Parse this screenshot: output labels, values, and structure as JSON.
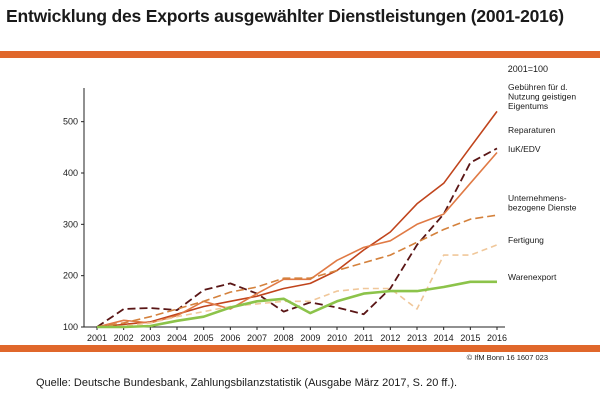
{
  "title": "Entwicklung des Exports ausgewählter Dienstleistungen (2001-2016)",
  "index_note": "2001=100",
  "copyright": "© IfM Bonn 16 1607 023",
  "source": "Quelle: Deutsche Bundesbank, Zahlungsbilanzstatistik (Ausgabe März 2017, S. 20 ff.).",
  "colors": {
    "accent_bar": "#e0672b"
  },
  "chart_data": {
    "type": "line",
    "title": "Entwicklung des Exports ausgewählter Dienstleistungen (2001-2016)",
    "xlabel": "",
    "ylabel": "",
    "x": [
      "2001",
      "2002",
      "2003",
      "2004",
      "2005",
      "2006",
      "2007",
      "2008",
      "2009",
      "2010",
      "2011",
      "2012",
      "2013",
      "2014",
      "2015",
      "2016"
    ],
    "ylim": [
      100,
      550
    ],
    "yticks": [
      100,
      200,
      300,
      400,
      500
    ],
    "series": [
      {
        "name": "Gebühren für d. Nutzung geistigen Eigentums",
        "label_lines": [
          "Gebühren für d.",
          "Nutzung geistigen",
          "Eigentums"
        ],
        "color": "#c0441c",
        "dash": "",
        "width": 1.6,
        "values": [
          100,
          105,
          110,
          125,
          140,
          150,
          160,
          175,
          185,
          210,
          250,
          285,
          340,
          380,
          450,
          520
        ]
      },
      {
        "name": "Reparaturen",
        "label_lines": [
          "Reparaturen"
        ],
        "color": "#5a1616",
        "dash": "8,4",
        "width": 1.8,
        "values": [
          100,
          135,
          137,
          133,
          172,
          185,
          165,
          130,
          148,
          138,
          125,
          175,
          260,
          320,
          420,
          448
        ]
      },
      {
        "name": "IuK/EDV",
        "label_lines": [
          "IuK/EDV"
        ],
        "color": "#e07a45",
        "dash": "",
        "width": 1.6,
        "values": [
          100,
          113,
          108,
          122,
          150,
          135,
          165,
          193,
          193,
          230,
          255,
          268,
          300,
          320,
          380,
          440
        ]
      },
      {
        "name": "Unternehmensbezogene Dienste",
        "label_lines": [
          "Unternehmens-",
          "bezogene Dienste"
        ],
        "color": "#d4813c",
        "dash": "8,4",
        "width": 1.6,
        "values": [
          100,
          108,
          120,
          135,
          150,
          168,
          178,
          195,
          195,
          210,
          225,
          240,
          265,
          290,
          310,
          318
        ]
      },
      {
        "name": "Fertigung",
        "label_lines": [
          "Fertigung"
        ],
        "color": "#f0c79a",
        "dash": "6,4",
        "width": 1.6,
        "values": [
          100,
          102,
          108,
          120,
          130,
          140,
          145,
          150,
          150,
          170,
          175,
          175,
          135,
          240,
          240,
          260
        ]
      },
      {
        "name": "Warenexport",
        "label_lines": [
          "Warenexport"
        ],
        "color": "#8cc34a",
        "dash": "",
        "width": 2.6,
        "values": [
          100,
          100,
          102,
          112,
          120,
          138,
          150,
          155,
          127,
          150,
          165,
          170,
          170,
          178,
          188,
          188
        ]
      }
    ]
  }
}
